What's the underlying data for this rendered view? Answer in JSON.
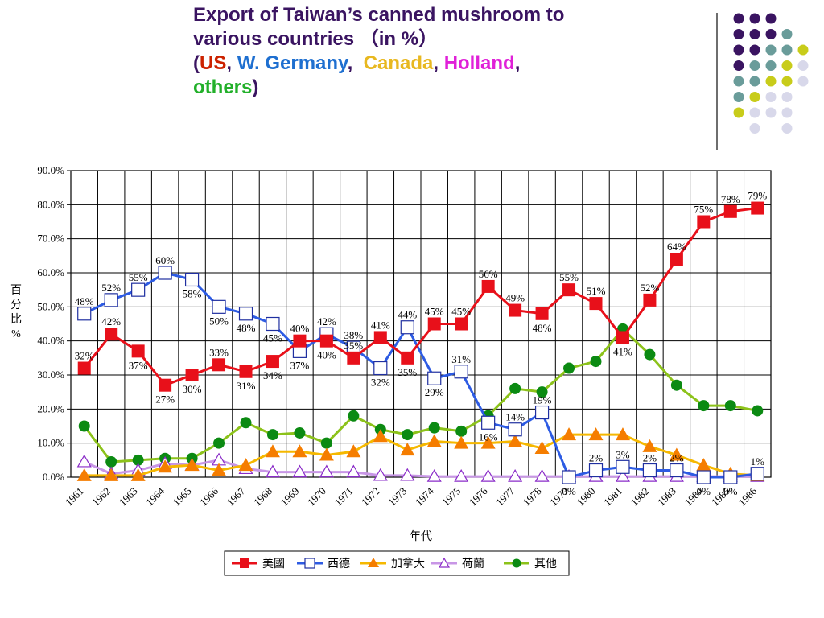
{
  "slide": {
    "title_line1": "Export of Taiwan’s canned mushroom to",
    "title_line2": "various countries （in %）",
    "paren_open": "(",
    "paren_close": ")",
    "comma": ",",
    "list": [
      {
        "text": "US",
        "color": "#cc2200"
      },
      {
        "text": "W. Germany",
        "color": "#1e6fd0"
      },
      {
        "text": "Canada",
        "color": "#e8b820"
      },
      {
        "text": "Holland",
        "color": "#e020d8"
      },
      {
        "text": "others",
        "color": "#22b02a"
      }
    ]
  },
  "decor": {
    "dot_colors": [
      "#3a1461",
      "#6a9c9a",
      "#c8cc1a",
      "#d8d8ea"
    ]
  },
  "chart_data": {
    "type": "line",
    "title": "",
    "xlabel": "年代",
    "ylabel": "百分比%",
    "ylim": [
      0,
      90
    ],
    "y_ticks": [
      "0.0%",
      "10.0%",
      "20.0%",
      "30.0%",
      "40.0%",
      "50.0%",
      "60.0%",
      "70.0%",
      "80.0%",
      "90.0%"
    ],
    "grid": true,
    "legend_position": "bottom",
    "categories": [
      "1961",
      "1962",
      "1963",
      "1964",
      "1965",
      "1966",
      "1967",
      "1968",
      "1969",
      "1970",
      "1971",
      "1972",
      "1973",
      "1974",
      "1975",
      "1976",
      "1977",
      "1978",
      "1979",
      "1980",
      "1981",
      "1982",
      "1983",
      "1984",
      "1985",
      "1986"
    ],
    "series": [
      {
        "name": "美國",
        "color": "#e8101a",
        "marker": "square",
        "values": [
          32,
          42,
          37,
          27,
          30,
          33,
          31,
          34,
          40,
          40,
          35,
          41,
          35,
          45,
          45,
          56,
          49,
          48,
          55,
          51,
          41,
          52,
          64,
          75,
          78,
          79
        ],
        "labels": [
          "32%",
          "42%",
          "37%",
          "27%",
          "30%",
          "33%",
          "31%",
          "34%",
          "40%",
          "40%",
          "35%",
          "41%",
          "35%",
          "45%",
          "45%",
          "56%",
          "49%",
          "48%",
          "55%",
          "51%",
          "41%",
          "52%",
          "64%",
          "75%",
          "78%",
          "79%"
        ]
      },
      {
        "name": "西德",
        "color": "#2d5be3",
        "marker": "hollow-square",
        "values": [
          48,
          52,
          55,
          60,
          58,
          50,
          48,
          45,
          37,
          42,
          38,
          32,
          44,
          29,
          31,
          16,
          14,
          19,
          0,
          2,
          3,
          2,
          2,
          0,
          0,
          1
        ],
        "labels": [
          "48%",
          "52%",
          "55%",
          "60%",
          "58%",
          "50%",
          "48%",
          "45%",
          "37%",
          "42%",
          "38%",
          "32%",
          "44%",
          "29%",
          "31%",
          "16%",
          "14%",
          "19%",
          "0%",
          "2%",
          "3%",
          "2%",
          "2%",
          "0%",
          "0%",
          "1%"
        ]
      },
      {
        "name": "加拿大",
        "color": "#f5b800",
        "marker": "triangle",
        "values": [
          0.5,
          0.5,
          0.5,
          3,
          3.5,
          2,
          3.5,
          7.5,
          7.5,
          6.5,
          7.5,
          12,
          8,
          10.5,
          10,
          10,
          10.5,
          8.5,
          12.5,
          12.5,
          12.5,
          9,
          6.5,
          3.5,
          1,
          0.5
        ],
        "labels": []
      },
      {
        "name": "荷蘭",
        "color": "#c896e6",
        "marker": "hollow-triangle",
        "values": [
          4.5,
          1,
          2,
          4,
          3.5,
          5,
          2.5,
          1.5,
          1.5,
          1.5,
          1.5,
          0.5,
          0.5,
          0.2,
          0.2,
          0.2,
          0.2,
          0.2,
          0.2,
          0.2,
          0.2,
          0.2,
          0.2,
          0.2,
          0.2,
          0.2
        ],
        "labels": []
      },
      {
        "name": "其他",
        "color": "#8cc21a",
        "marker": "circle",
        "values": [
          15,
          4.5,
          5,
          5.5,
          5.5,
          10,
          16,
          12.5,
          13,
          10,
          18,
          14,
          12.5,
          14.5,
          13.5,
          18,
          26,
          25,
          32,
          34,
          43.5,
          36,
          27,
          21,
          21,
          19.5
        ],
        "labels": []
      }
    ]
  }
}
